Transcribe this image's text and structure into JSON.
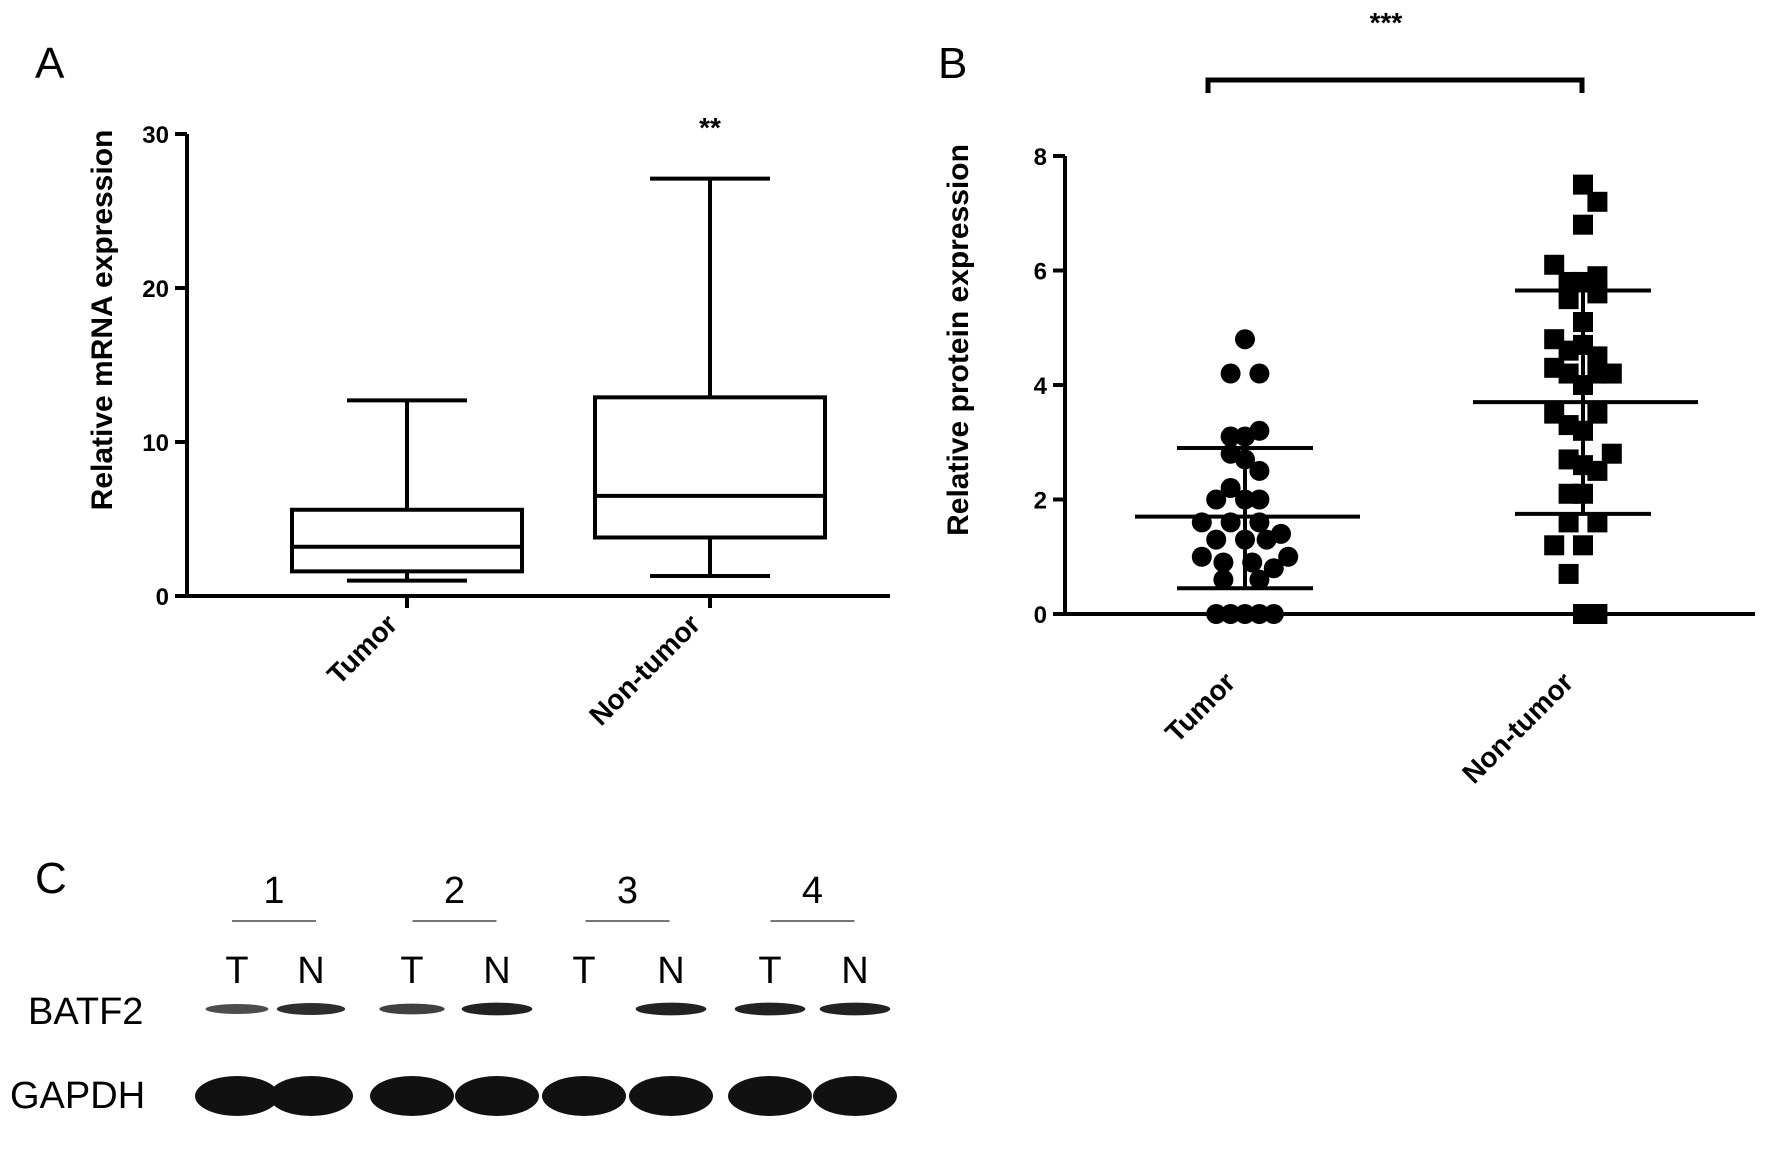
{
  "chart_data": [
    {
      "panel": "A",
      "type": "box",
      "ylabel": "Relative mRNA expression",
      "ylim": [
        0,
        30
      ],
      "yticks": [
        "0",
        "10",
        "20",
        "30"
      ],
      "categories": [
        "Tumor",
        "Non-tumor"
      ],
      "boxes": [
        {
          "category": "Tumor",
          "min": 1.0,
          "q1": 1.6,
          "median": 3.2,
          "q3": 5.6,
          "max": 12.7
        },
        {
          "category": "Non-tumor",
          "min": 1.3,
          "q1": 3.8,
          "median": 6.5,
          "q3": 12.9,
          "max": 27.1
        }
      ],
      "significance": "**"
    },
    {
      "panel": "B",
      "type": "scatter",
      "ylabel": "Relative protein expression",
      "ylim": [
        0,
        8
      ],
      "yticks": [
        "0",
        "2",
        "4",
        "6",
        "8"
      ],
      "categories": [
        "Tumor",
        "Non-tumor"
      ],
      "series": [
        {
          "category": "Tumor",
          "marker": "circle",
          "points": [
            {
              "dx": 0.0,
              "y": 4.8
            },
            {
              "dx": 0.2,
              "y": 4.2
            },
            {
              "dx": -0.2,
              "y": 4.2
            },
            {
              "dx": 0.2,
              "y": 3.2
            },
            {
              "dx": -0.2,
              "y": 3.1
            },
            {
              "dx": 0.0,
              "y": 3.1
            },
            {
              "dx": -0.2,
              "y": 2.8
            },
            {
              "dx": 0.0,
              "y": 2.7
            },
            {
              "dx": 0.2,
              "y": 2.5
            },
            {
              "dx": -0.2,
              "y": 2.2
            },
            {
              "dx": -0.4,
              "y": 2.0
            },
            {
              "dx": 0.0,
              "y": 2.0
            },
            {
              "dx": 0.2,
              "y": 2.0
            },
            {
              "dx": -0.6,
              "y": 1.6
            },
            {
              "dx": -0.2,
              "y": 1.6
            },
            {
              "dx": 0.2,
              "y": 1.6
            },
            {
              "dx": 0.5,
              "y": 1.4
            },
            {
              "dx": -0.4,
              "y": 1.3
            },
            {
              "dx": 0.0,
              "y": 1.3
            },
            {
              "dx": 0.3,
              "y": 1.3
            },
            {
              "dx": -0.6,
              "y": 1.0
            },
            {
              "dx": -0.3,
              "y": 0.9
            },
            {
              "dx": 0.1,
              "y": 0.9
            },
            {
              "dx": 0.4,
              "y": 0.8
            },
            {
              "dx": 0.6,
              "y": 1.0
            },
            {
              "dx": -0.3,
              "y": 0.6
            },
            {
              "dx": 0.2,
              "y": 0.6
            },
            {
              "dx": -0.4,
              "y": 0.0
            },
            {
              "dx": -0.2,
              "y": 0.0
            },
            {
              "dx": 0.0,
              "y": 0.0
            },
            {
              "dx": 0.2,
              "y": 0.0
            },
            {
              "dx": 0.4,
              "y": 0.0
            }
          ],
          "mean": 1.7,
          "sd_low": 0.45,
          "sd_high": 2.9
        },
        {
          "category": "Non-tumor",
          "marker": "square",
          "points": [
            {
              "dx": 0.0,
              "y": 7.5
            },
            {
              "dx": 0.2,
              "y": 7.2
            },
            {
              "dx": 0.0,
              "y": 6.8
            },
            {
              "dx": -0.4,
              "y": 6.1
            },
            {
              "dx": 0.2,
              "y": 5.9
            },
            {
              "dx": -0.2,
              "y": 5.8
            },
            {
              "dx": 0.0,
              "y": 5.8
            },
            {
              "dx": 0.2,
              "y": 5.6
            },
            {
              "dx": -0.2,
              "y": 5.5
            },
            {
              "dx": 0.0,
              "y": 5.1
            },
            {
              "dx": -0.4,
              "y": 4.8
            },
            {
              "dx": -0.2,
              "y": 4.6
            },
            {
              "dx": 0.0,
              "y": 4.7
            },
            {
              "dx": 0.2,
              "y": 4.5
            },
            {
              "dx": -0.4,
              "y": 4.3
            },
            {
              "dx": -0.2,
              "y": 4.2
            },
            {
              "dx": 0.2,
              "y": 4.2
            },
            {
              "dx": 0.4,
              "y": 4.2
            },
            {
              "dx": 0.0,
              "y": 4.0
            },
            {
              "dx": -0.4,
              "y": 3.5
            },
            {
              "dx": 0.2,
              "y": 3.5
            },
            {
              "dx": -0.2,
              "y": 3.3
            },
            {
              "dx": 0.0,
              "y": 3.2
            },
            {
              "dx": -0.2,
              "y": 2.7
            },
            {
              "dx": 0.0,
              "y": 2.6
            },
            {
              "dx": 0.4,
              "y": 2.8
            },
            {
              "dx": 0.2,
              "y": 2.5
            },
            {
              "dx": -0.2,
              "y": 2.1
            },
            {
              "dx": 0.0,
              "y": 2.1
            },
            {
              "dx": -0.2,
              "y": 1.6
            },
            {
              "dx": 0.2,
              "y": 1.6
            },
            {
              "dx": -0.4,
              "y": 1.2
            },
            {
              "dx": 0.0,
              "y": 1.2
            },
            {
              "dx": -0.2,
              "y": 0.7
            },
            {
              "dx": 0.0,
              "y": 0.0
            },
            {
              "dx": 0.2,
              "y": 0.0
            }
          ],
          "mean": 3.7,
          "sd_low": 1.75,
          "sd_high": 5.65
        }
      ],
      "significance": "***"
    }
  ],
  "panels": {
    "a": {
      "letter": "A"
    },
    "b": {
      "letter": "B"
    },
    "c": {
      "letter": "C",
      "pairs": [
        "1",
        "2",
        "3",
        "4"
      ],
      "lane_labels": [
        "T",
        "N",
        "T",
        "N",
        "T",
        "N",
        "T",
        "N"
      ],
      "rows": [
        {
          "label": "BATF2",
          "intensity": [
            0.5,
            0.75,
            0.6,
            0.85,
            0.0,
            0.85,
            0.85,
            0.85
          ]
        },
        {
          "label": "GAPDH",
          "intensity": [
            1,
            1,
            1,
            1,
            1,
            1,
            1,
            1
          ]
        }
      ]
    }
  }
}
